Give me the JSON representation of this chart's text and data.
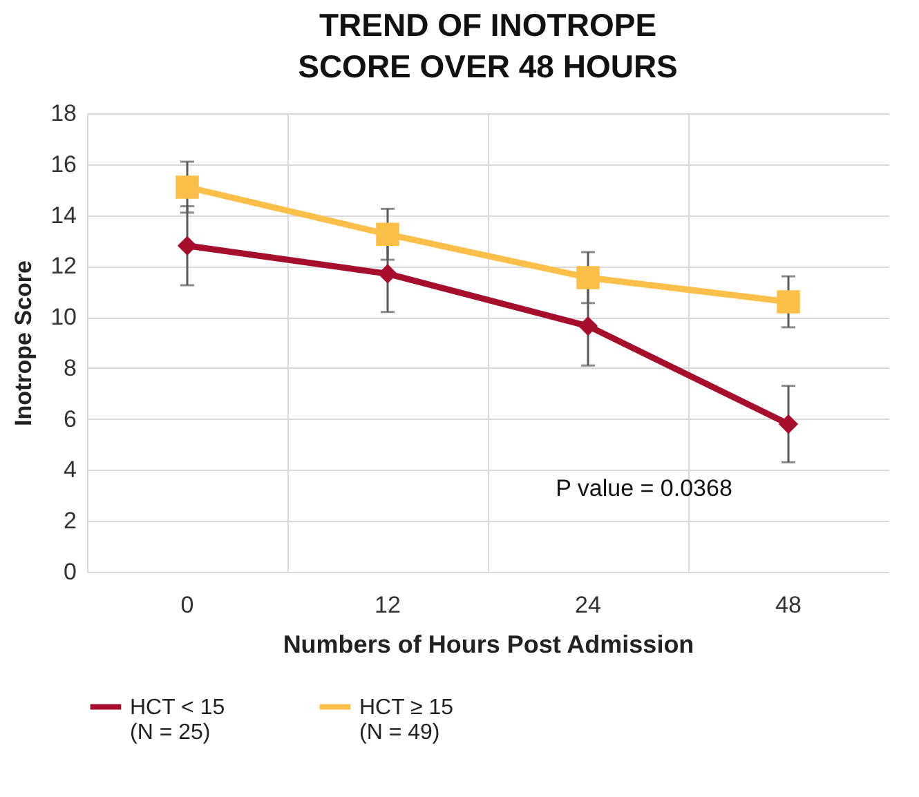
{
  "chart_data": {
    "type": "line",
    "title": "TREND OF INOTROPE SCORE OVER 48 HOURS",
    "xlabel": "Numbers of Hours Post Admission",
    "ylabel": "Inotrope Score",
    "categories": [
      "0",
      "12",
      "24",
      "48"
    ],
    "series": [
      {
        "name": "HCT < 15\n(N = 25)",
        "color": "#a50f2d",
        "marker": "diamond",
        "values": [
          12.8,
          11.7,
          9.65,
          5.8
        ],
        "errors": [
          1.55,
          1.5,
          1.55,
          1.5
        ]
      },
      {
        "name": "HCT ≥ 15\n(N = 49)",
        "color": "#fbbf4a",
        "marker": "square",
        "values": [
          15.1,
          13.25,
          11.55,
          10.6
        ],
        "errors": [
          1.0,
          1.0,
          1.0,
          1.0
        ]
      }
    ],
    "ylim": [
      0,
      18
    ],
    "yticks": [
      0,
      2,
      4,
      6,
      8,
      10,
      12,
      14,
      16,
      18
    ],
    "grid": true,
    "legend": "bottom",
    "annotations": [
      "P value = 0.0368"
    ]
  }
}
